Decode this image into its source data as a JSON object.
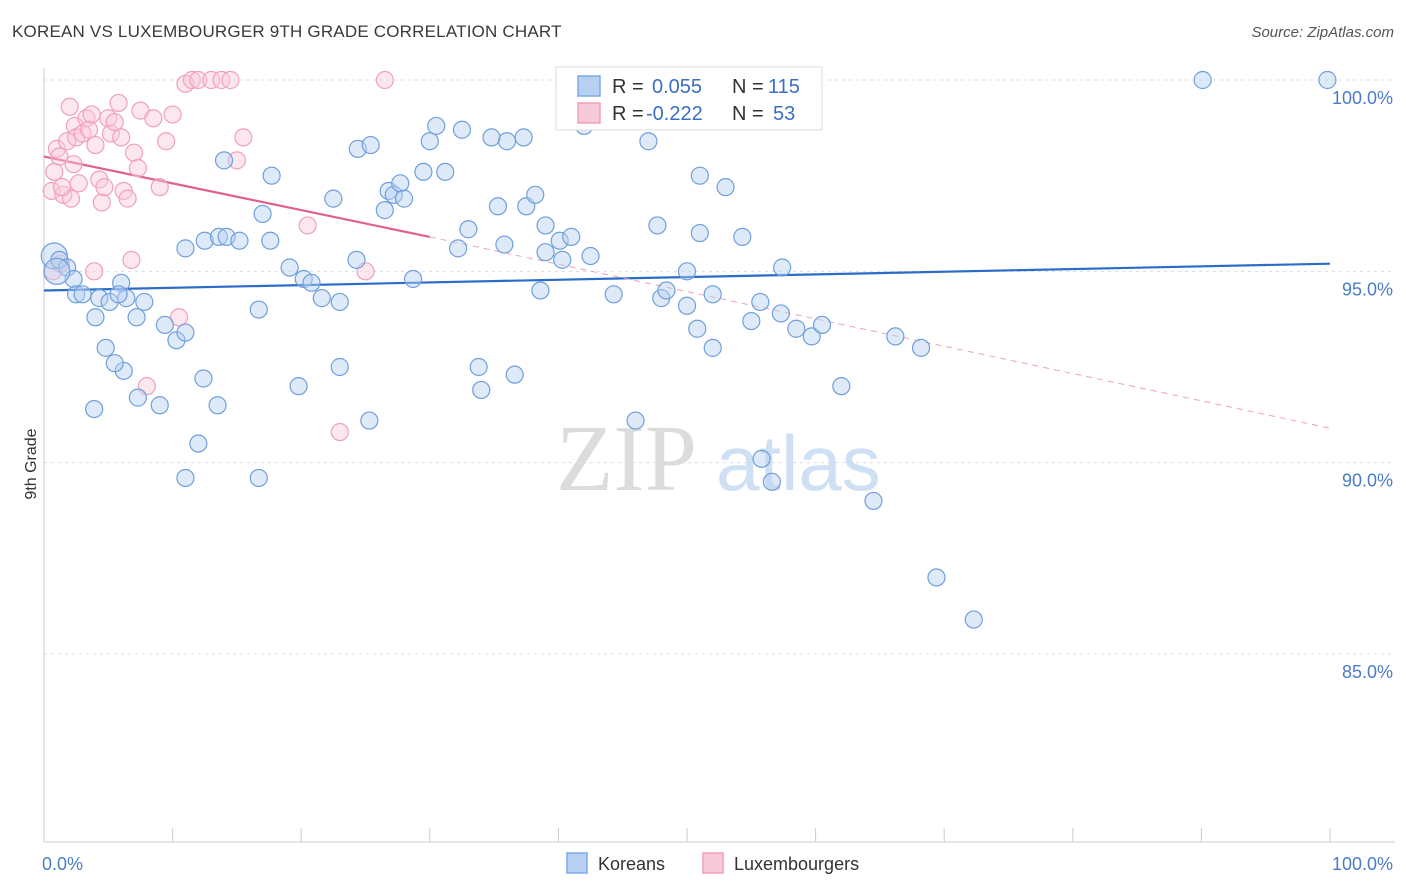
{
  "title": "KOREAN VS LUXEMBOURGER 9TH GRADE CORRELATION CHART",
  "source": "Source: ZipAtlas.com",
  "watermark": {
    "zip": "ZIP",
    "atlas": "atlas"
  },
  "legend_top": {
    "rows": [
      {
        "r_label": "R =",
        "r_value": "0.055",
        "n_label": "N =",
        "n_value": "115"
      },
      {
        "r_label": "R =",
        "r_value": "-0.222",
        "n_label": "N =",
        "n_value": "53"
      }
    ]
  },
  "chart_data": {
    "type": "scatter",
    "title": "KOREAN VS LUXEMBOURGER 9TH GRADE CORRELATION CHART",
    "xlabel": "",
    "ylabel": "9th Grade",
    "xlim": [
      0,
      100
    ],
    "ylim": [
      80.5,
      100.5
    ],
    "x_tick_labels": [
      "0.0%",
      "100.0%"
    ],
    "y_ticks": [
      85,
      90,
      95,
      100
    ],
    "y_tick_labels": [
      "85.0%",
      "90.0%",
      "95.0%",
      "100.0%"
    ],
    "grid": true,
    "legend_placement": "bottom-center",
    "colors": {
      "koreans": "#7aaae8",
      "koreans_line": "#2b6cc9",
      "luxembourgers": "#f0a0bb",
      "luxembourgers_line": "#e0608a"
    },
    "series": [
      {
        "name": "Koreans",
        "r": 0.055,
        "n": 115,
        "trend": {
          "x0": 0,
          "y0": 94.5,
          "x1": 100,
          "y1": 95.2
        },
        "points": [
          [
            0.8,
            95.4
          ],
          [
            1.2,
            95.3
          ],
          [
            1.8,
            95.1
          ],
          [
            2.3,
            94.8
          ],
          [
            2.5,
            94.4
          ],
          [
            3.0,
            94.4
          ],
          [
            4.3,
            94.3
          ],
          [
            1.0,
            95.0
          ],
          [
            5.1,
            94.2
          ],
          [
            6.0,
            94.7
          ],
          [
            6.4,
            94.3
          ],
          [
            7.8,
            94.2
          ],
          [
            4.0,
            93.8
          ],
          [
            7.2,
            93.8
          ],
          [
            4.8,
            93.0
          ],
          [
            6.2,
            92.4
          ],
          [
            5.5,
            92.6
          ],
          [
            9.4,
            93.6
          ],
          [
            10.3,
            93.2
          ],
          [
            11.0,
            93.4
          ],
          [
            12.5,
            95.8
          ],
          [
            13.6,
            95.9
          ],
          [
            14.2,
            95.9
          ],
          [
            15.2,
            95.8
          ],
          [
            17.6,
            95.8
          ],
          [
            17.0,
            96.5
          ],
          [
            16.7,
            94.0
          ],
          [
            20.2,
            94.8
          ],
          [
            19.1,
            95.1
          ],
          [
            20.8,
            94.7
          ],
          [
            21.6,
            94.3
          ],
          [
            23.0,
            94.2
          ],
          [
            24.3,
            95.3
          ],
          [
            19.8,
            92.0
          ],
          [
            23.0,
            92.5
          ],
          [
            25.3,
            91.1
          ],
          [
            12.4,
            92.2
          ],
          [
            13.5,
            91.5
          ],
          [
            9.0,
            91.5
          ],
          [
            7.3,
            91.7
          ],
          [
            3.9,
            91.4
          ],
          [
            12.0,
            90.5
          ],
          [
            11.0,
            89.6
          ],
          [
            16.7,
            89.6
          ],
          [
            14.0,
            97.9
          ],
          [
            17.7,
            97.5
          ],
          [
            22.5,
            96.9
          ],
          [
            24.4,
            98.2
          ],
          [
            25.4,
            98.3
          ],
          [
            26.5,
            96.6
          ],
          [
            26.8,
            97.1
          ],
          [
            27.2,
            97.0
          ],
          [
            27.7,
            97.3
          ],
          [
            28.0,
            96.9
          ],
          [
            28.7,
            94.8
          ],
          [
            29.5,
            97.6
          ],
          [
            30.0,
            98.4
          ],
          [
            30.5,
            98.8
          ],
          [
            31.2,
            97.6
          ],
          [
            32.2,
            95.6
          ],
          [
            32.5,
            98.7
          ],
          [
            33.0,
            96.1
          ],
          [
            33.8,
            92.5
          ],
          [
            34.0,
            91.9
          ],
          [
            34.8,
            98.5
          ],
          [
            35.3,
            96.7
          ],
          [
            35.8,
            95.7
          ],
          [
            36.0,
            98.4
          ],
          [
            36.6,
            92.3
          ],
          [
            37.3,
            98.5
          ],
          [
            37.5,
            96.7
          ],
          [
            38.2,
            97.0
          ],
          [
            38.6,
            94.5
          ],
          [
            39.0,
            95.5
          ],
          [
            39.0,
            96.2
          ],
          [
            40.1,
            95.8
          ],
          [
            40.3,
            95.3
          ],
          [
            41.0,
            95.9
          ],
          [
            42.0,
            98.8
          ],
          [
            42.5,
            95.4
          ],
          [
            44.3,
            94.4
          ],
          [
            46.0,
            91.1
          ],
          [
            47.0,
            98.4
          ],
          [
            47.7,
            96.2
          ],
          [
            48.0,
            94.3
          ],
          [
            48.4,
            94.5
          ],
          [
            50.0,
            94.1
          ],
          [
            50.0,
            95.0
          ],
          [
            50.8,
            93.5
          ],
          [
            51.0,
            97.5
          ],
          [
            51.0,
            96.0
          ],
          [
            52.0,
            93.0
          ],
          [
            52.0,
            94.4
          ],
          [
            54.3,
            95.9
          ],
          [
            55.0,
            93.7
          ],
          [
            55.7,
            94.2
          ],
          [
            57.3,
            93.9
          ],
          [
            57.4,
            95.1
          ],
          [
            58.5,
            93.5
          ],
          [
            59.7,
            93.3
          ],
          [
            60.5,
            93.6
          ],
          [
            55.8,
            90.1
          ],
          [
            56.6,
            89.5
          ],
          [
            62.0,
            92.0
          ],
          [
            64.5,
            89.0
          ],
          [
            66.2,
            93.3
          ],
          [
            68.2,
            93.0
          ],
          [
            69.4,
            87.0
          ],
          [
            72.3,
            85.9
          ],
          [
            90.1,
            100.0
          ],
          [
            99.8,
            100.0
          ],
          [
            53.0,
            97.2
          ],
          [
            11.0,
            95.6
          ],
          [
            5.8,
            94.4
          ],
          [
            45.0,
            100.0
          ]
        ]
      },
      {
        "name": "Luxembourgers",
        "r": -0.222,
        "n": 53,
        "trend": {
          "x0": 0,
          "y0": 98.0,
          "x1": 30,
          "y1": 95.9,
          "dash_x1": 100,
          "dash_y1": 90.9
        },
        "points": [
          [
            0.6,
            97.1
          ],
          [
            0.7,
            95.0
          ],
          [
            0.8,
            97.6
          ],
          [
            1.0,
            98.2
          ],
          [
            1.2,
            98.0
          ],
          [
            1.3,
            95.2
          ],
          [
            1.5,
            97.0
          ],
          [
            1.8,
            98.4
          ],
          [
            2.0,
            99.3
          ],
          [
            2.1,
            96.9
          ],
          [
            2.3,
            97.8
          ],
          [
            2.4,
            98.8
          ],
          [
            2.5,
            98.5
          ],
          [
            2.7,
            97.3
          ],
          [
            3.0,
            98.6
          ],
          [
            3.3,
            99.0
          ],
          [
            3.5,
            98.7
          ],
          [
            3.7,
            99.1
          ],
          [
            3.9,
            95.0
          ],
          [
            4.0,
            98.3
          ],
          [
            4.3,
            97.4
          ],
          [
            4.5,
            96.8
          ],
          [
            4.7,
            97.2
          ],
          [
            5.0,
            99.0
          ],
          [
            5.2,
            98.6
          ],
          [
            5.5,
            98.9
          ],
          [
            5.8,
            99.4
          ],
          [
            6.0,
            98.5
          ],
          [
            6.2,
            97.1
          ],
          [
            6.5,
            96.9
          ],
          [
            6.8,
            95.3
          ],
          [
            7.0,
            98.1
          ],
          [
            7.3,
            97.7
          ],
          [
            7.5,
            99.2
          ],
          [
            8.0,
            92.0
          ],
          [
            8.5,
            99.0
          ],
          [
            9.0,
            97.2
          ],
          [
            9.5,
            98.4
          ],
          [
            10.0,
            99.1
          ],
          [
            10.5,
            93.8
          ],
          [
            11.0,
            99.9
          ],
          [
            11.5,
            100.0
          ],
          [
            12.0,
            100.0
          ],
          [
            13.0,
            100.0
          ],
          [
            13.8,
            100.0
          ],
          [
            14.5,
            100.0
          ],
          [
            15.0,
            97.9
          ],
          [
            15.5,
            98.5
          ],
          [
            20.5,
            96.2
          ],
          [
            23.0,
            90.8
          ],
          [
            25.0,
            95.0
          ],
          [
            26.5,
            100.0
          ],
          [
            1.4,
            97.2
          ]
        ]
      }
    ]
  },
  "bottom_legend": [
    {
      "label": "Koreans",
      "color": "#b7d0f2",
      "stroke": "#7aaae8"
    },
    {
      "label": "Luxembourgers",
      "color": "#f8c9d8",
      "stroke": "#f0a0bb"
    }
  ]
}
